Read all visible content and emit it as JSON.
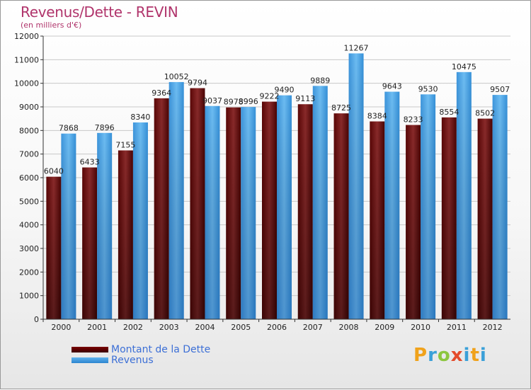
{
  "title": "Revenus/Dette - REVIN",
  "subtitle": "(en milliers d'€)",
  "logo_text": "Proxiti",
  "colors": {
    "dette": "#6a0a0a",
    "revenus": "#4aa3e8",
    "title": "#b0346b",
    "legend_text": "#3c6fd6"
  },
  "chart_data": {
    "type": "bar",
    "title": "Revenus/Dette - REVIN",
    "subtitle": "(en milliers d'€)",
    "categories": [
      "2000",
      "2001",
      "2002",
      "2003",
      "2004",
      "2005",
      "2006",
      "2007",
      "2008",
      "2009",
      "2010",
      "2011",
      "2012"
    ],
    "series": [
      {
        "name": "Montant de la Dette",
        "values": [
          6040,
          6433,
          7155,
          9364,
          9794,
          8978,
          9222,
          9113,
          8725,
          8384,
          8233,
          8554,
          8502
        ]
      },
      {
        "name": "Revenus",
        "values": [
          7868,
          7896,
          8340,
          10052,
          9037,
          8996,
          9490,
          9889,
          11267,
          9643,
          9530,
          10475,
          9507
        ]
      }
    ],
    "data_labels": [
      [
        "6040",
        "6433",
        "7155",
        "9364",
        "9794",
        "8978",
        "9222",
        "9113",
        "8725",
        "8384",
        "8233",
        "8554",
        "8502"
      ],
      [
        "7868",
        "7896",
        "8340",
        "10052",
        "9037",
        "8996",
        "9490",
        "9889",
        "11267",
        "9643",
        "9530",
        "10475",
        "9507"
      ]
    ],
    "ylim": [
      0,
      12000
    ],
    "yticks": [
      "0",
      "1000",
      "2000",
      "3000",
      "4000",
      "5000",
      "6000",
      "7000",
      "8000",
      "9000",
      "10000",
      "11000",
      "12000"
    ],
    "grid": true,
    "legend_position": "bottom-left"
  }
}
